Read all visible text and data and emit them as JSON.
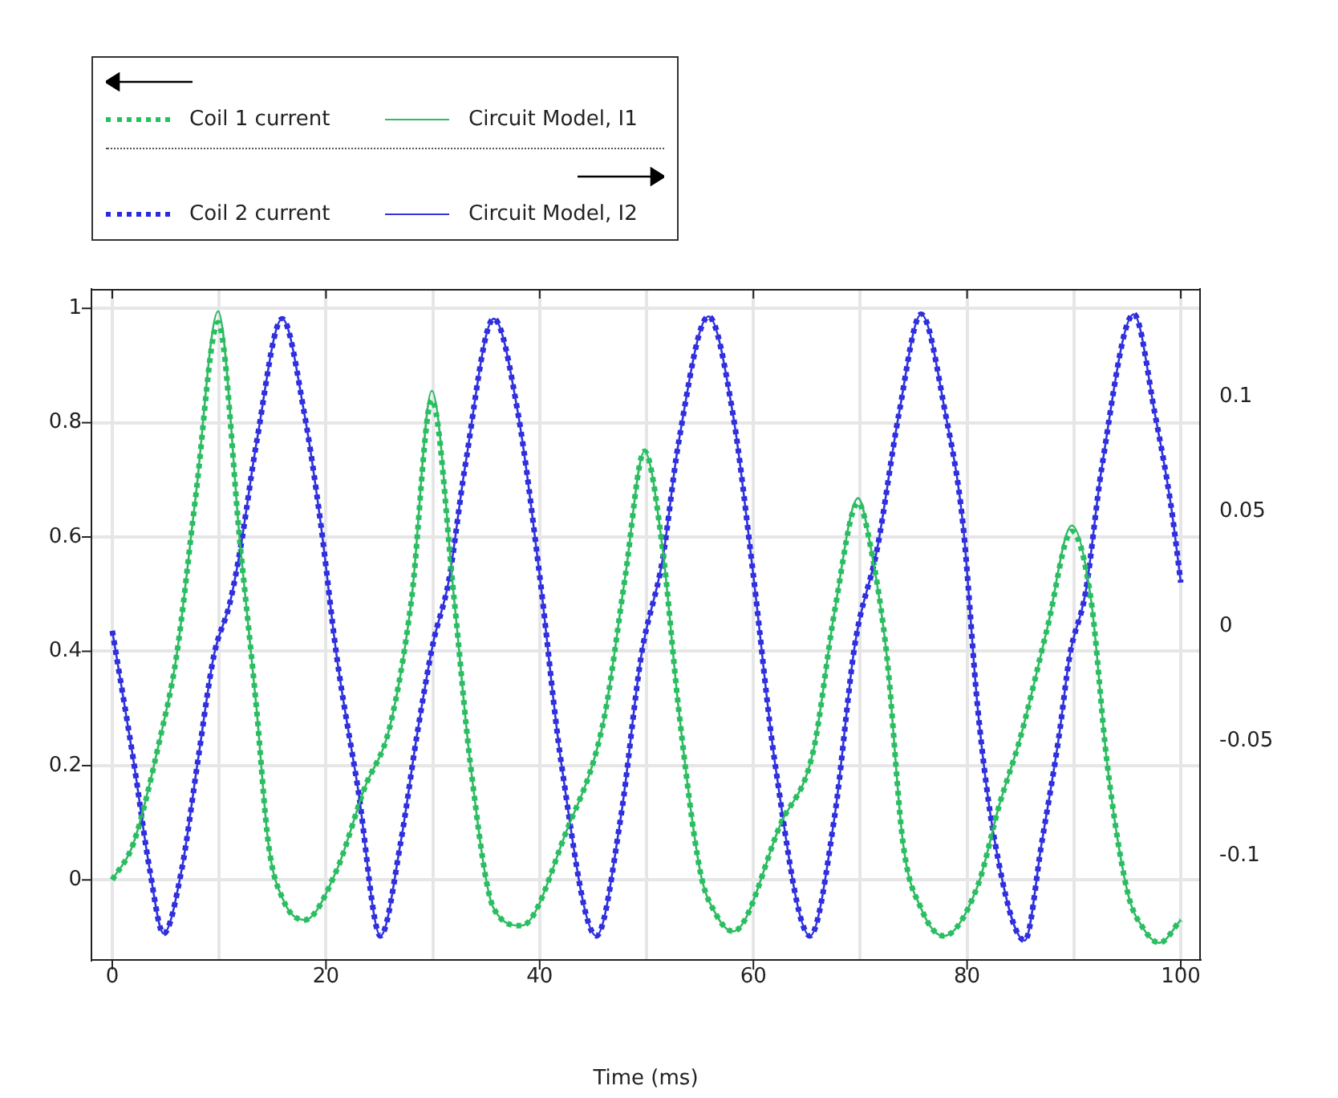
{
  "chart_data": {
    "type": "line",
    "xlabel": "Time (ms)",
    "xlim": [
      -1.95,
      101.8
    ],
    "xticks": [
      0,
      {
        "value": 10,
        "label": null
      },
      20,
      {
        "value": 30,
        "label": null
      },
      40,
      {
        "value": 50,
        "label": null
      },
      60,
      {
        "value": 70,
        "label": null
      },
      80,
      {
        "value": 90,
        "label": null
      },
      100
    ],
    "ylim": [
      -0.14,
      1.034
    ],
    "yticks": [
      0,
      0.2,
      0.4,
      0.6,
      0.8,
      1
    ],
    "y2lim": [
      -0.1455,
      0.147
    ],
    "y2ticks": [
      -0.1,
      -0.05,
      0,
      0.05,
      0.1
    ],
    "grid": true,
    "legend": "top left",
    "series": [
      {
        "name": "Coil 1 current",
        "color": "#22c35e",
        "line_style": "dotted",
        "axis": "y",
        "x": [
          0,
          2,
          4.5,
          6,
          7.8,
          9.9,
          12,
          13.5,
          14.6,
          16,
          18,
          21,
          23.6,
          26,
          28,
          29.9,
          32,
          33.5,
          35.7,
          38.3,
          42.5,
          46,
          48,
          49.8,
          51.5,
          53,
          55,
          56.5,
          58.1,
          62.6,
          65.6,
          67.6,
          69.8,
          71,
          72.5,
          74,
          75.7,
          77.8,
          81,
          83,
          85,
          87.5,
          89.8,
          91.6,
          93.1,
          95,
          96.5,
          98,
          100
        ],
        "values": [
          0,
          0.065,
          0.25,
          0.39,
          0.67,
          0.975,
          0.58,
          0.3,
          0.065,
          -0.035,
          -0.07,
          0.017,
          0.16,
          0.27,
          0.49,
          0.84,
          0.49,
          0.205,
          -0.05,
          -0.08,
          0.085,
          0.28,
          0.53,
          0.75,
          0.58,
          0.3,
          0.017,
          -0.06,
          -0.09,
          0.1,
          0.225,
          0.47,
          0.66,
          0.58,
          0.39,
          0.065,
          -0.05,
          -0.098,
          -0.01,
          0.13,
          0.25,
          0.44,
          0.61,
          0.49,
          0.205,
          -0.02,
          -0.085,
          -0.11,
          -0.07
        ]
      },
      {
        "name": "Circuit Model, I1",
        "color": "#33b864",
        "line_style": "solid",
        "axis": "y",
        "x": [
          0,
          2,
          4.5,
          6,
          7.8,
          9.9,
          12,
          13.5,
          14.6,
          16,
          18,
          21,
          23.6,
          26,
          28,
          29.9,
          32,
          33.5,
          35.7,
          38.3,
          42.5,
          46,
          48,
          49.8,
          51.5,
          53,
          55,
          56.5,
          58.1,
          62.6,
          65.6,
          67.6,
          69.8,
          71,
          72.5,
          74,
          75.7,
          77.8,
          81,
          83,
          85,
          87.5,
          89.8,
          91.6,
          93.1,
          95,
          96.5,
          98,
          100
        ],
        "values": [
          0,
          0.065,
          0.25,
          0.39,
          0.67,
          0.995,
          0.58,
          0.3,
          0.065,
          -0.035,
          -0.07,
          0.017,
          0.16,
          0.27,
          0.49,
          0.856,
          0.49,
          0.205,
          -0.05,
          -0.08,
          0.085,
          0.28,
          0.53,
          0.75,
          0.58,
          0.3,
          0.017,
          -0.06,
          -0.09,
          0.1,
          0.225,
          0.47,
          0.668,
          0.58,
          0.39,
          0.065,
          -0.05,
          -0.098,
          -0.01,
          0.13,
          0.25,
          0.44,
          0.62,
          0.49,
          0.205,
          -0.02,
          -0.085,
          -0.11,
          -0.07
        ]
      },
      {
        "name": "Coil 2 current",
        "color": "#2a2ae0",
        "line_style": "dotted",
        "axis": "y2",
        "x": [
          0,
          2,
          3.5,
          4.8,
          6.5,
          8,
          9.5,
          11,
          12,
          13.5,
          15.9,
          18,
          19.5,
          21,
          23,
          25.1,
          27,
          28.5,
          30,
          31.5,
          33,
          35.7,
          38,
          40,
          42,
          45.3,
          47.6,
          49.5,
          51.5,
          53,
          55.8,
          58.1,
          60,
          62,
          65.3,
          67.6,
          69.5,
          71.6,
          73.6,
          75.7,
          78,
          79.6,
          81,
          82.6,
          85.4,
          87,
          88.6,
          89.6,
          91.1,
          92.6,
          95.6,
          97.6,
          99.1,
          100
        ],
        "values": [
          -0.002,
          -0.059,
          -0.106,
          -0.134,
          -0.106,
          -0.059,
          -0.013,
          0.01,
          0.034,
          0.08,
          0.134,
          0.092,
          0.045,
          -0.013,
          -0.071,
          -0.135,
          -0.094,
          -0.048,
          -0.008,
          0.02,
          0.069,
          0.134,
          0.092,
          0.022,
          -0.059,
          -0.135,
          -0.083,
          -0.013,
          0.029,
          0.08,
          0.135,
          0.092,
          0.022,
          -0.059,
          -0.135,
          -0.083,
          -0.008,
          0.034,
          0.092,
          0.136,
          0.092,
          0.045,
          -0.036,
          -0.094,
          -0.137,
          -0.094,
          -0.048,
          -0.013,
          0.015,
          0.069,
          0.136,
          0.092,
          0.052,
          0.019
        ]
      },
      {
        "name": "Circuit Model, I2",
        "color": "#3333dd",
        "line_style": "solid",
        "axis": "y2",
        "x": [
          0,
          2,
          3.5,
          4.8,
          6.5,
          8,
          9.5,
          11,
          12,
          13.5,
          15.9,
          18,
          19.5,
          21,
          23,
          25.1,
          27,
          28.5,
          30,
          31.5,
          33,
          35.7,
          38,
          40,
          42,
          45.3,
          47.6,
          49.5,
          51.5,
          53,
          55.8,
          58.1,
          60,
          62,
          65.3,
          67.6,
          69.5,
          71.6,
          73.6,
          75.7,
          78,
          79.6,
          81,
          82.6,
          85.4,
          87,
          88.6,
          89.6,
          91.1,
          92.6,
          95.6,
          97.6,
          99.1,
          100
        ],
        "values": [
          -0.002,
          -0.059,
          -0.106,
          -0.134,
          -0.106,
          -0.059,
          -0.013,
          0.01,
          0.034,
          0.08,
          0.134,
          0.092,
          0.045,
          -0.013,
          -0.071,
          -0.135,
          -0.094,
          -0.048,
          -0.008,
          0.02,
          0.069,
          0.134,
          0.092,
          0.022,
          -0.059,
          -0.135,
          -0.083,
          -0.013,
          0.029,
          0.08,
          0.135,
          0.092,
          0.022,
          -0.059,
          -0.135,
          -0.083,
          -0.008,
          0.034,
          0.092,
          0.136,
          0.092,
          0.045,
          -0.036,
          -0.094,
          -0.137,
          -0.094,
          -0.048,
          -0.013,
          0.015,
          0.069,
          0.136,
          0.092,
          0.052,
          0.019
        ]
      }
    ]
  }
}
